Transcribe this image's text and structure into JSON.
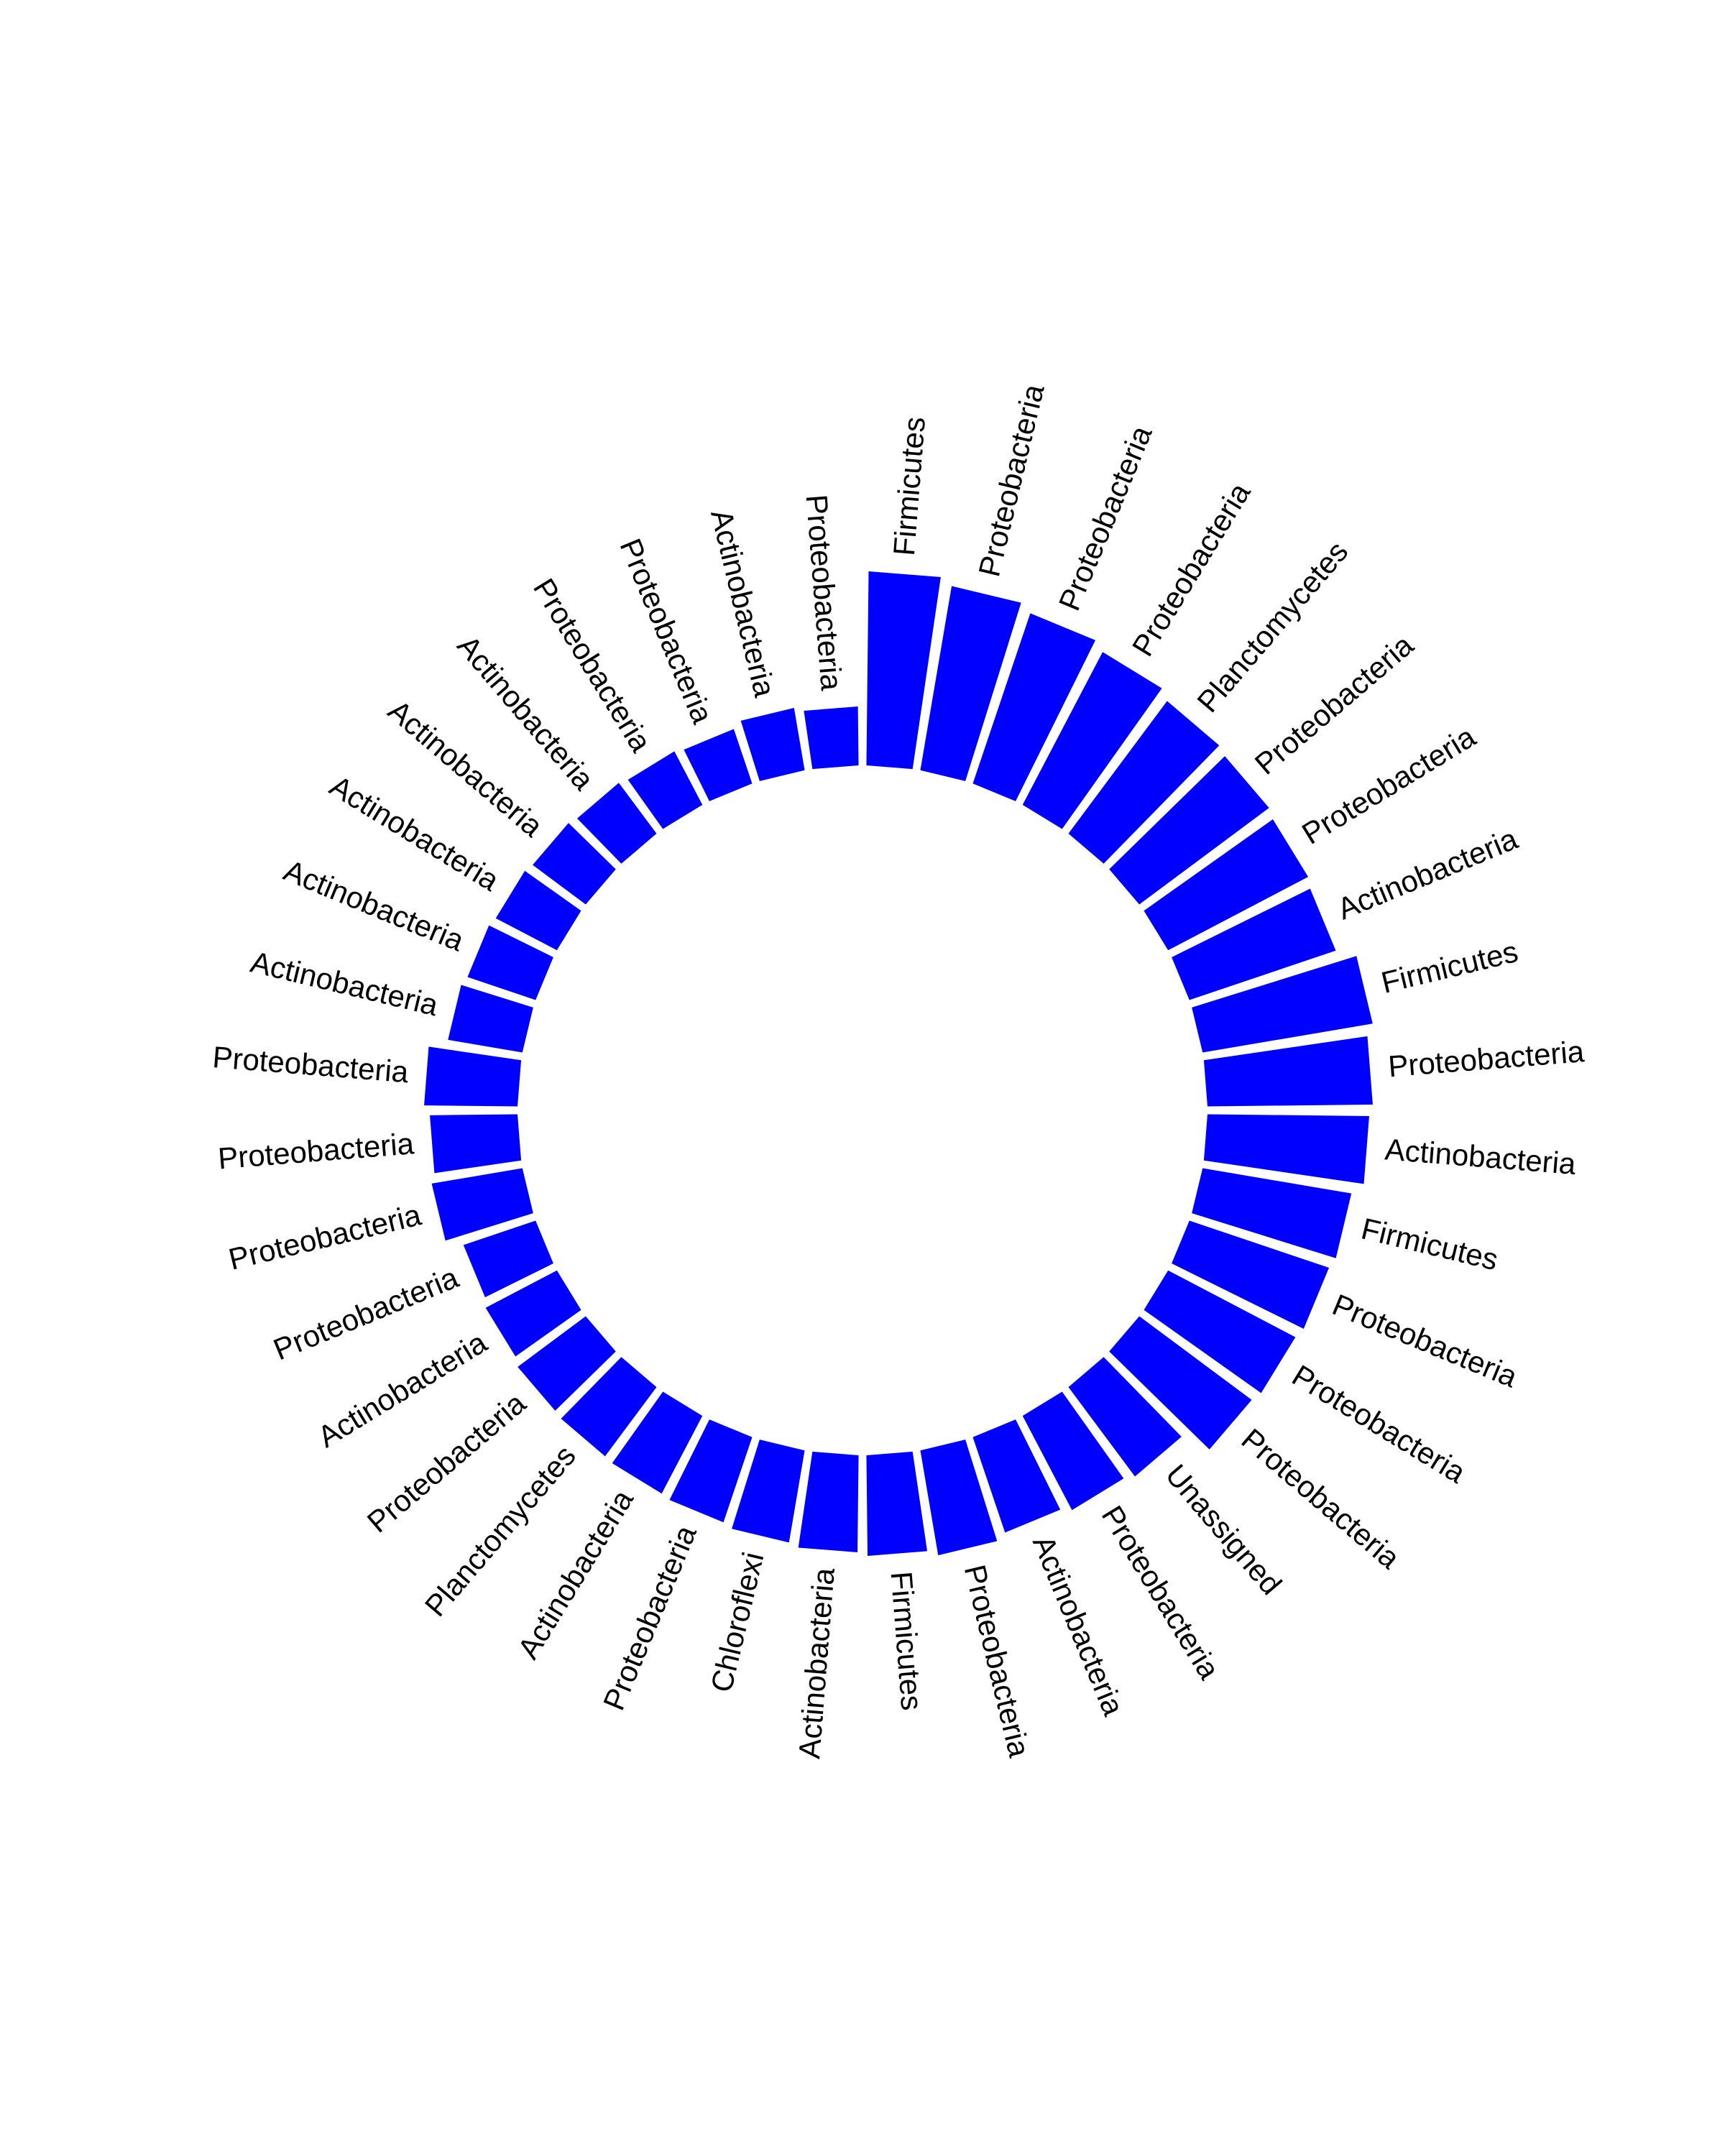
{
  "chart_data": {
    "type": "bar",
    "coord": "polar",
    "color": "#0000ff",
    "categories": [
      "Firmicutes",
      "Proteobacteria",
      "Proteobacteria",
      "Proteobacteria",
      "Planctomycetes",
      "Proteobacteria",
      "Proteobacteria",
      "Actinobacteria",
      "Firmicutes",
      "Proteobacteria",
      "Actinobacteria",
      "Firmicutes",
      "Proteobacteria",
      "Proteobacteria",
      "Proteobacteria",
      "Unassigned",
      "Proteobacteria",
      "Actinobacteria",
      "Proteobacteria",
      "Firmicutes",
      "Actinobacteria",
      "Chloroflexi",
      "Proteobacteria",
      "Actinobacteria",
      "Planctomycetes",
      "Proteobacteria",
      "Actinobacteria",
      "Proteobacteria",
      "Proteobacteria",
      "Proteobacteria",
      "Proteobacteria",
      "Actinobacteria",
      "Actinobacteria",
      "Actinobacteria",
      "Actinobacteria",
      "Actinobacteria",
      "Proteobacteria",
      "Proteobacteria",
      "Actinobacteria",
      "Proteobacteria"
    ],
    "values": [
      270,
      260,
      250,
      240,
      230,
      225,
      220,
      215,
      240,
      230,
      225,
      210,
      205,
      200,
      195,
      155,
      148,
      140,
      148,
      140,
      135,
      130,
      125,
      122,
      120,
      118,
      112,
      106,
      128,
      122,
      130,
      105,
      100,
      96,
      92,
      88,
      84,
      80,
      88,
      82
    ],
    "grid": false,
    "legend": "none"
  }
}
